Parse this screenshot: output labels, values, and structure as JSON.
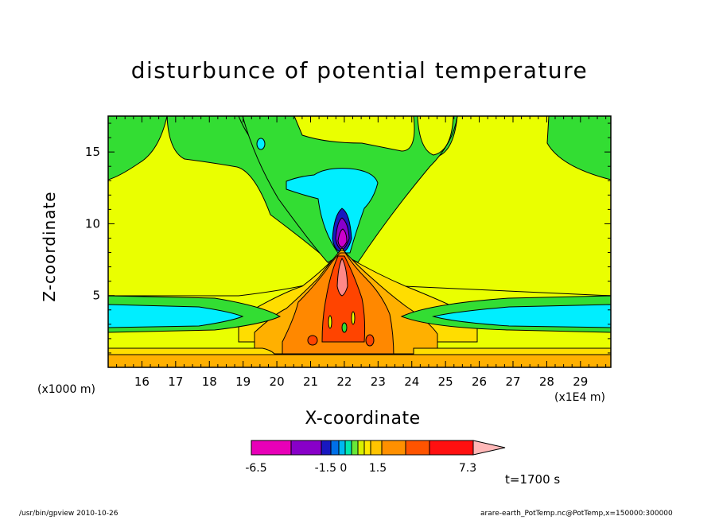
{
  "chart_data": {
    "type": "heatmap",
    "title": "disturbunce of potential temperature",
    "xlabel": "X-coordinate",
    "ylabel": "Z-coordinate",
    "x_unit_left": "(x1000 m)",
    "x_unit_right": "(x1E4 m)",
    "x_ticks": [
      "16",
      "17",
      "18",
      "19",
      "20",
      "21",
      "22",
      "23",
      "24",
      "25",
      "26",
      "27",
      "28",
      "29"
    ],
    "y_ticks": [
      "5",
      "10",
      "15"
    ],
    "xlim": [
      15.0,
      29.9
    ],
    "ylim": [
      0,
      17.5
    ],
    "colorbar": {
      "labels": [
        "-6.5",
        "-1.5 0",
        "1.5",
        "7.3"
      ],
      "colors": [
        "#e800b8",
        "#8800c8",
        "#1818c0",
        "#0070e8",
        "#00b8f0",
        "#00e8b0",
        "#68e838",
        "#d8f000",
        "#ffe800",
        "#ffc400",
        "#ff9000",
        "#ff5400",
        "#ff1010",
        "#ff7878",
        "#ffb8b8"
      ]
    },
    "palette": {
      "green": "#33dd33",
      "yellow": "#eaff00",
      "cyan": "#00eeff",
      "blue": "#0000ee",
      "purple": "#8800cc",
      "magenta": "#cc00cc",
      "lightorange": "#ffdd00",
      "orange": "#ffb000",
      "darkorange": "#ff8800",
      "red": "#ff4400",
      "pink": "#ff8888"
    }
  },
  "annotation": {
    "time": "t=1700 s",
    "footer_left": "/usr/bin/gpview  2010-10-26",
    "footer_right": "arare-earth_PotTemp.nc@PotTemp,x=150000:300000"
  }
}
